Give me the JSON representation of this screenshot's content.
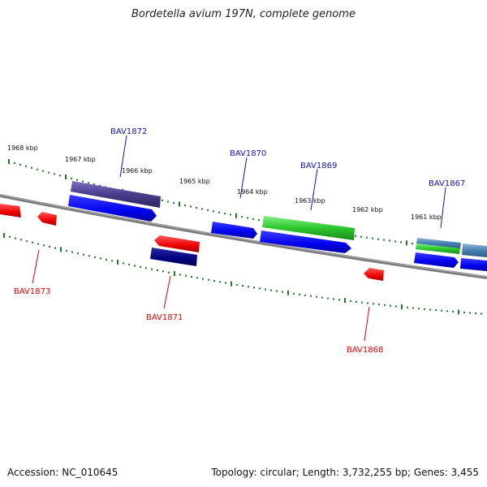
{
  "title": "Bordetella avium 197N, complete genome",
  "footer": {
    "accession": "Accession: NC_010645",
    "topology": "Topology: circular; Length: 3,732,255 bp; Genes: 3,455"
  },
  "colors": {
    "backbone": "#8c8c8c",
    "tick": "#1e7a1e",
    "label_forward": "#1010c0",
    "label_reverse": "#e00000"
  },
  "kbp_labels": [
    "1968 kbp",
    "1967 kbp",
    "1966 kbp",
    "1965 kbp",
    "1964 kbp",
    "1963 kbp",
    "1962 kbp",
    "1961 kbp"
  ],
  "gene_labels": {
    "forward": [
      "BAV1872",
      "BAV1870",
      "BAV1869",
      "BAV1867"
    ],
    "reverse": [
      "BAV1873",
      "BAV1871",
      "BAV1868"
    ]
  }
}
